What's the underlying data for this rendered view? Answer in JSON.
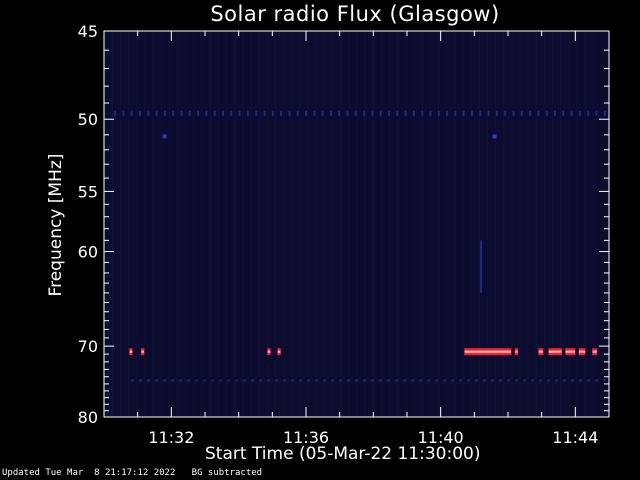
{
  "chart_data": {
    "type": "heatmap",
    "title": "Solar radio Flux (Glasgow)",
    "xlabel": "Start Time (05-Mar-22 11:30:00)",
    "ylabel": "Frequency [MHz]",
    "x_tick_labels": [
      "11:32",
      "11:36",
      "11:40",
      "11:44"
    ],
    "x_tick_minutes": [
      2,
      6,
      10,
      14
    ],
    "xlim_minutes_after_start": [
      0,
      15
    ],
    "y_tick_labels": [
      "45",
      "50",
      "55",
      "60",
      "70",
      "80"
    ],
    "y_tick_values": [
      45,
      50,
      55,
      60,
      70,
      80
    ],
    "ylim": [
      45,
      80
    ],
    "y_scale": "reciprocal",
    "grid": false,
    "background_color": "#0b0c2e",
    "colors": {
      "faint": "#1f2a8c",
      "hot_edge": "#ff1a3a",
      "hot_core": "#ffd6a0"
    },
    "features": [
      {
        "kind": "dotted_line",
        "freq_mhz": 49.6,
        "from_min": 0.3,
        "to_min": 15.0
      },
      {
        "kind": "faint_line",
        "freq_mhz": 74.5,
        "from_min": 0.8,
        "to_min": 15.0
      },
      {
        "kind": "spot",
        "freq_mhz": 51.1,
        "at_min": 1.8
      },
      {
        "kind": "spot",
        "freq_mhz": 51.1,
        "at_min": 11.6
      },
      {
        "kind": "streak",
        "freq_mhz_from": 59.0,
        "freq_mhz_to": 64.0,
        "at_min": 11.2
      },
      {
        "kind": "burst",
        "freq_mhz": 70.7,
        "from_min": 0.75,
        "to_min": 0.85
      },
      {
        "kind": "burst",
        "freq_mhz": 70.7,
        "from_min": 1.1,
        "to_min": 1.2
      },
      {
        "kind": "burst",
        "freq_mhz": 70.7,
        "from_min": 4.85,
        "to_min": 4.95
      },
      {
        "kind": "burst",
        "freq_mhz": 70.7,
        "from_min": 5.15,
        "to_min": 5.25
      },
      {
        "kind": "burst",
        "freq_mhz": 70.7,
        "from_min": 10.7,
        "to_min": 12.1
      },
      {
        "kind": "burst",
        "freq_mhz": 70.7,
        "from_min": 12.2,
        "to_min": 12.3
      },
      {
        "kind": "burst",
        "freq_mhz": 70.7,
        "from_min": 12.9,
        "to_min": 13.05
      },
      {
        "kind": "burst",
        "freq_mhz": 70.7,
        "from_min": 13.2,
        "to_min": 13.6
      },
      {
        "kind": "burst",
        "freq_mhz": 70.7,
        "from_min": 13.7,
        "to_min": 14.0
      },
      {
        "kind": "burst",
        "freq_mhz": 70.7,
        "from_min": 14.1,
        "to_min": 14.3
      },
      {
        "kind": "burst",
        "freq_mhz": 70.7,
        "from_min": 14.5,
        "to_min": 14.65
      }
    ]
  },
  "footer": "Updated Tue Mar  8 21:17:12 2022   BG subtracted"
}
